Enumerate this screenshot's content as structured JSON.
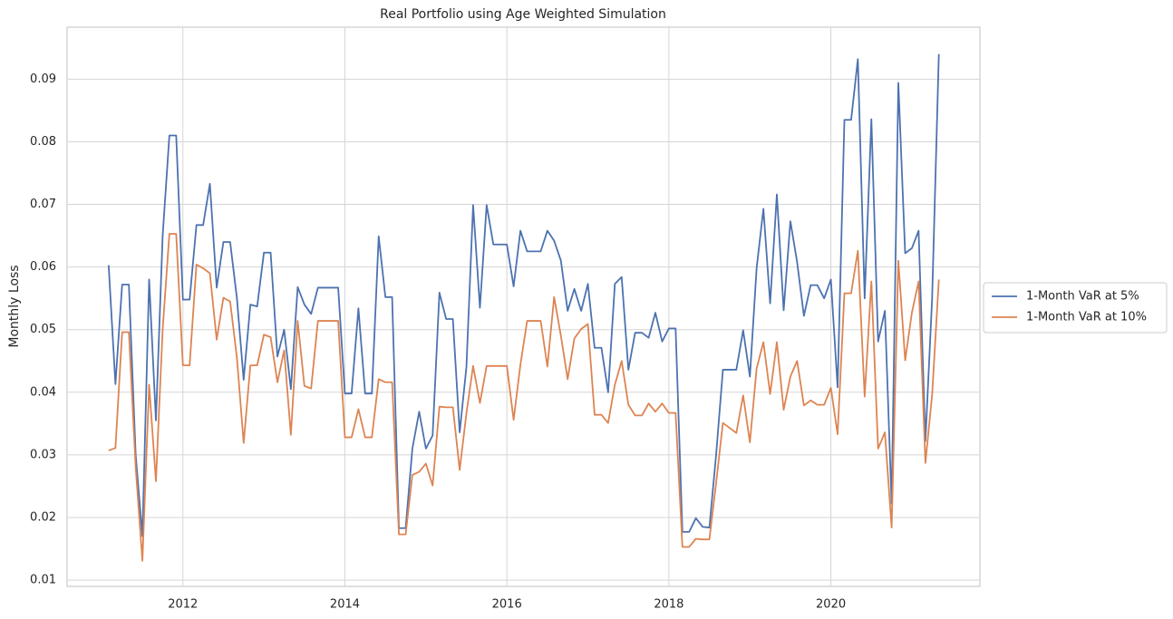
{
  "chart_data": {
    "type": "line",
    "title": "Real Portfolio using Age Weighted Simulation",
    "y_label": "Monthly Loss",
    "x": [
      2011.083,
      2011.167,
      2011.25,
      2011.333,
      2011.417,
      2011.5,
      2011.583,
      2011.667,
      2011.75,
      2011.833,
      2011.917,
      2012,
      2012.083,
      2012.167,
      2012.25,
      2012.333,
      2012.417,
      2012.5,
      2012.583,
      2012.667,
      2012.75,
      2012.833,
      2012.917,
      2013,
      2013.083,
      2013.167,
      2013.25,
      2013.333,
      2013.417,
      2013.5,
      2013.583,
      2013.667,
      2013.75,
      2013.833,
      2013.917,
      2014,
      2014.083,
      2014.167,
      2014.25,
      2014.333,
      2014.417,
      2014.5,
      2014.583,
      2014.667,
      2014.75,
      2014.833,
      2014.917,
      2015,
      2015.083,
      2015.167,
      2015.25,
      2015.333,
      2015.417,
      2015.5,
      2015.583,
      2015.667,
      2015.75,
      2015.833,
      2015.917,
      2016,
      2016.083,
      2016.167,
      2016.25,
      2016.333,
      2016.417,
      2016.5,
      2016.583,
      2016.667,
      2016.75,
      2016.833,
      2016.917,
      2017,
      2017.083,
      2017.167,
      2017.25,
      2017.333,
      2017.417,
      2017.5,
      2017.583,
      2017.667,
      2017.75,
      2017.833,
      2017.917,
      2018,
      2018.083,
      2018.167,
      2018.25,
      2018.333,
      2018.417,
      2018.5,
      2018.583,
      2018.667,
      2018.75,
      2018.833,
      2018.917,
      2019,
      2019.083,
      2019.167,
      2019.25,
      2019.333,
      2019.417,
      2019.5,
      2019.583,
      2019.667,
      2019.75,
      2019.833,
      2019.917,
      2020,
      2020.083,
      2020.167,
      2020.25,
      2020.333,
      2020.417,
      2020.5,
      2020.583,
      2020.667,
      2020.75,
      2020.833,
      2020.917,
      2021,
      2021.083,
      2021.167,
      2021.25,
      2021.333
    ],
    "series": [
      {
        "name": "1-Month VaR at 5%",
        "color": "#4c72b0",
        "values": [
          0.0603,
          0.0413,
          0.0572,
          0.0572,
          0.03,
          0.017,
          0.058,
          0.0355,
          0.065,
          0.081,
          0.081,
          0.0548,
          0.0548,
          0.0667,
          0.0667,
          0.0733,
          0.0567,
          0.064,
          0.064,
          0.055,
          0.042,
          0.054,
          0.0537,
          0.0623,
          0.0623,
          0.0457,
          0.05,
          0.0405,
          0.0568,
          0.054,
          0.0525,
          0.0567,
          0.0567,
          0.0567,
          0.0567,
          0.0398,
          0.0398,
          0.0534,
          0.0398,
          0.0398,
          0.0649,
          0.0552,
          0.0552,
          0.0183,
          0.0183,
          0.031,
          0.0369,
          0.031,
          0.0331,
          0.0559,
          0.0517,
          0.0517,
          0.0336,
          0.044,
          0.0699,
          0.0535,
          0.0699,
          0.0636,
          0.0636,
          0.0636,
          0.0569,
          0.0658,
          0.0625,
          0.0625,
          0.0625,
          0.0658,
          0.0642,
          0.061,
          0.053,
          0.0565,
          0.053,
          0.0573,
          0.0471,
          0.0471,
          0.04,
          0.0573,
          0.0584,
          0.0436,
          0.0495,
          0.0495,
          0.0487,
          0.0527,
          0.0481,
          0.0502,
          0.0502,
          0.0177,
          0.0177,
          0.0199,
          0.0185,
          0.0184,
          0.03,
          0.0436,
          0.0436,
          0.0436,
          0.0499,
          0.0425,
          0.0598,
          0.0693,
          0.0542,
          0.0716,
          0.0531,
          0.0673,
          0.0608,
          0.0522,
          0.0571,
          0.0571,
          0.055,
          0.058,
          0.0408,
          0.0835,
          0.0835,
          0.0932,
          0.055,
          0.0836,
          0.0481,
          0.053,
          0.0222,
          0.0894,
          0.0622,
          0.063,
          0.0658,
          0.0322,
          0.055,
          0.094
        ]
      },
      {
        "name": "1-Month VaR at 10%",
        "color": "#dd8452",
        "values": [
          0.0307,
          0.0311,
          0.0496,
          0.0496,
          0.028,
          0.0131,
          0.0412,
          0.0258,
          0.05,
          0.0653,
          0.0653,
          0.0443,
          0.0443,
          0.0604,
          0.0598,
          0.059,
          0.0484,
          0.0551,
          0.0545,
          0.0455,
          0.0319,
          0.0443,
          0.0443,
          0.0492,
          0.0488,
          0.0416,
          0.0467,
          0.0332,
          0.0514,
          0.041,
          0.0406,
          0.0514,
          0.0514,
          0.0514,
          0.0514,
          0.0328,
          0.0328,
          0.0373,
          0.0328,
          0.0328,
          0.0421,
          0.0416,
          0.0416,
          0.0173,
          0.0173,
          0.0268,
          0.0273,
          0.0286,
          0.0251,
          0.0377,
          0.0376,
          0.0376,
          0.0276,
          0.0366,
          0.0442,
          0.0383,
          0.0442,
          0.0442,
          0.0442,
          0.0442,
          0.0356,
          0.0444,
          0.0514,
          0.0514,
          0.0514,
          0.0441,
          0.0552,
          0.049,
          0.0421,
          0.0486,
          0.0501,
          0.0509,
          0.0364,
          0.0364,
          0.0351,
          0.0412,
          0.045,
          0.038,
          0.0363,
          0.0363,
          0.0382,
          0.0369,
          0.0382,
          0.0367,
          0.0367,
          0.0153,
          0.0153,
          0.0166,
          0.0165,
          0.0165,
          0.0255,
          0.0351,
          0.0343,
          0.0335,
          0.0395,
          0.032,
          0.0438,
          0.048,
          0.0397,
          0.048,
          0.0372,
          0.0425,
          0.045,
          0.0379,
          0.0387,
          0.038,
          0.038,
          0.0407,
          0.0333,
          0.0558,
          0.0558,
          0.0626,
          0.0393,
          0.0577,
          0.031,
          0.0336,
          0.0184,
          0.061,
          0.0451,
          0.0527,
          0.0577,
          0.0287,
          0.0396,
          0.058
        ]
      }
    ],
    "xlim": [
      2010.57,
      2021.84
    ],
    "xticks": [
      2012,
      2014,
      2016,
      2018,
      2020
    ],
    "ylim": [
      0.009,
      0.0983
    ],
    "yticks": [
      0.01,
      0.02,
      0.03,
      0.04,
      0.05,
      0.06,
      0.07,
      0.08,
      0.09
    ],
    "grid": true,
    "legend": "outside-right"
  }
}
